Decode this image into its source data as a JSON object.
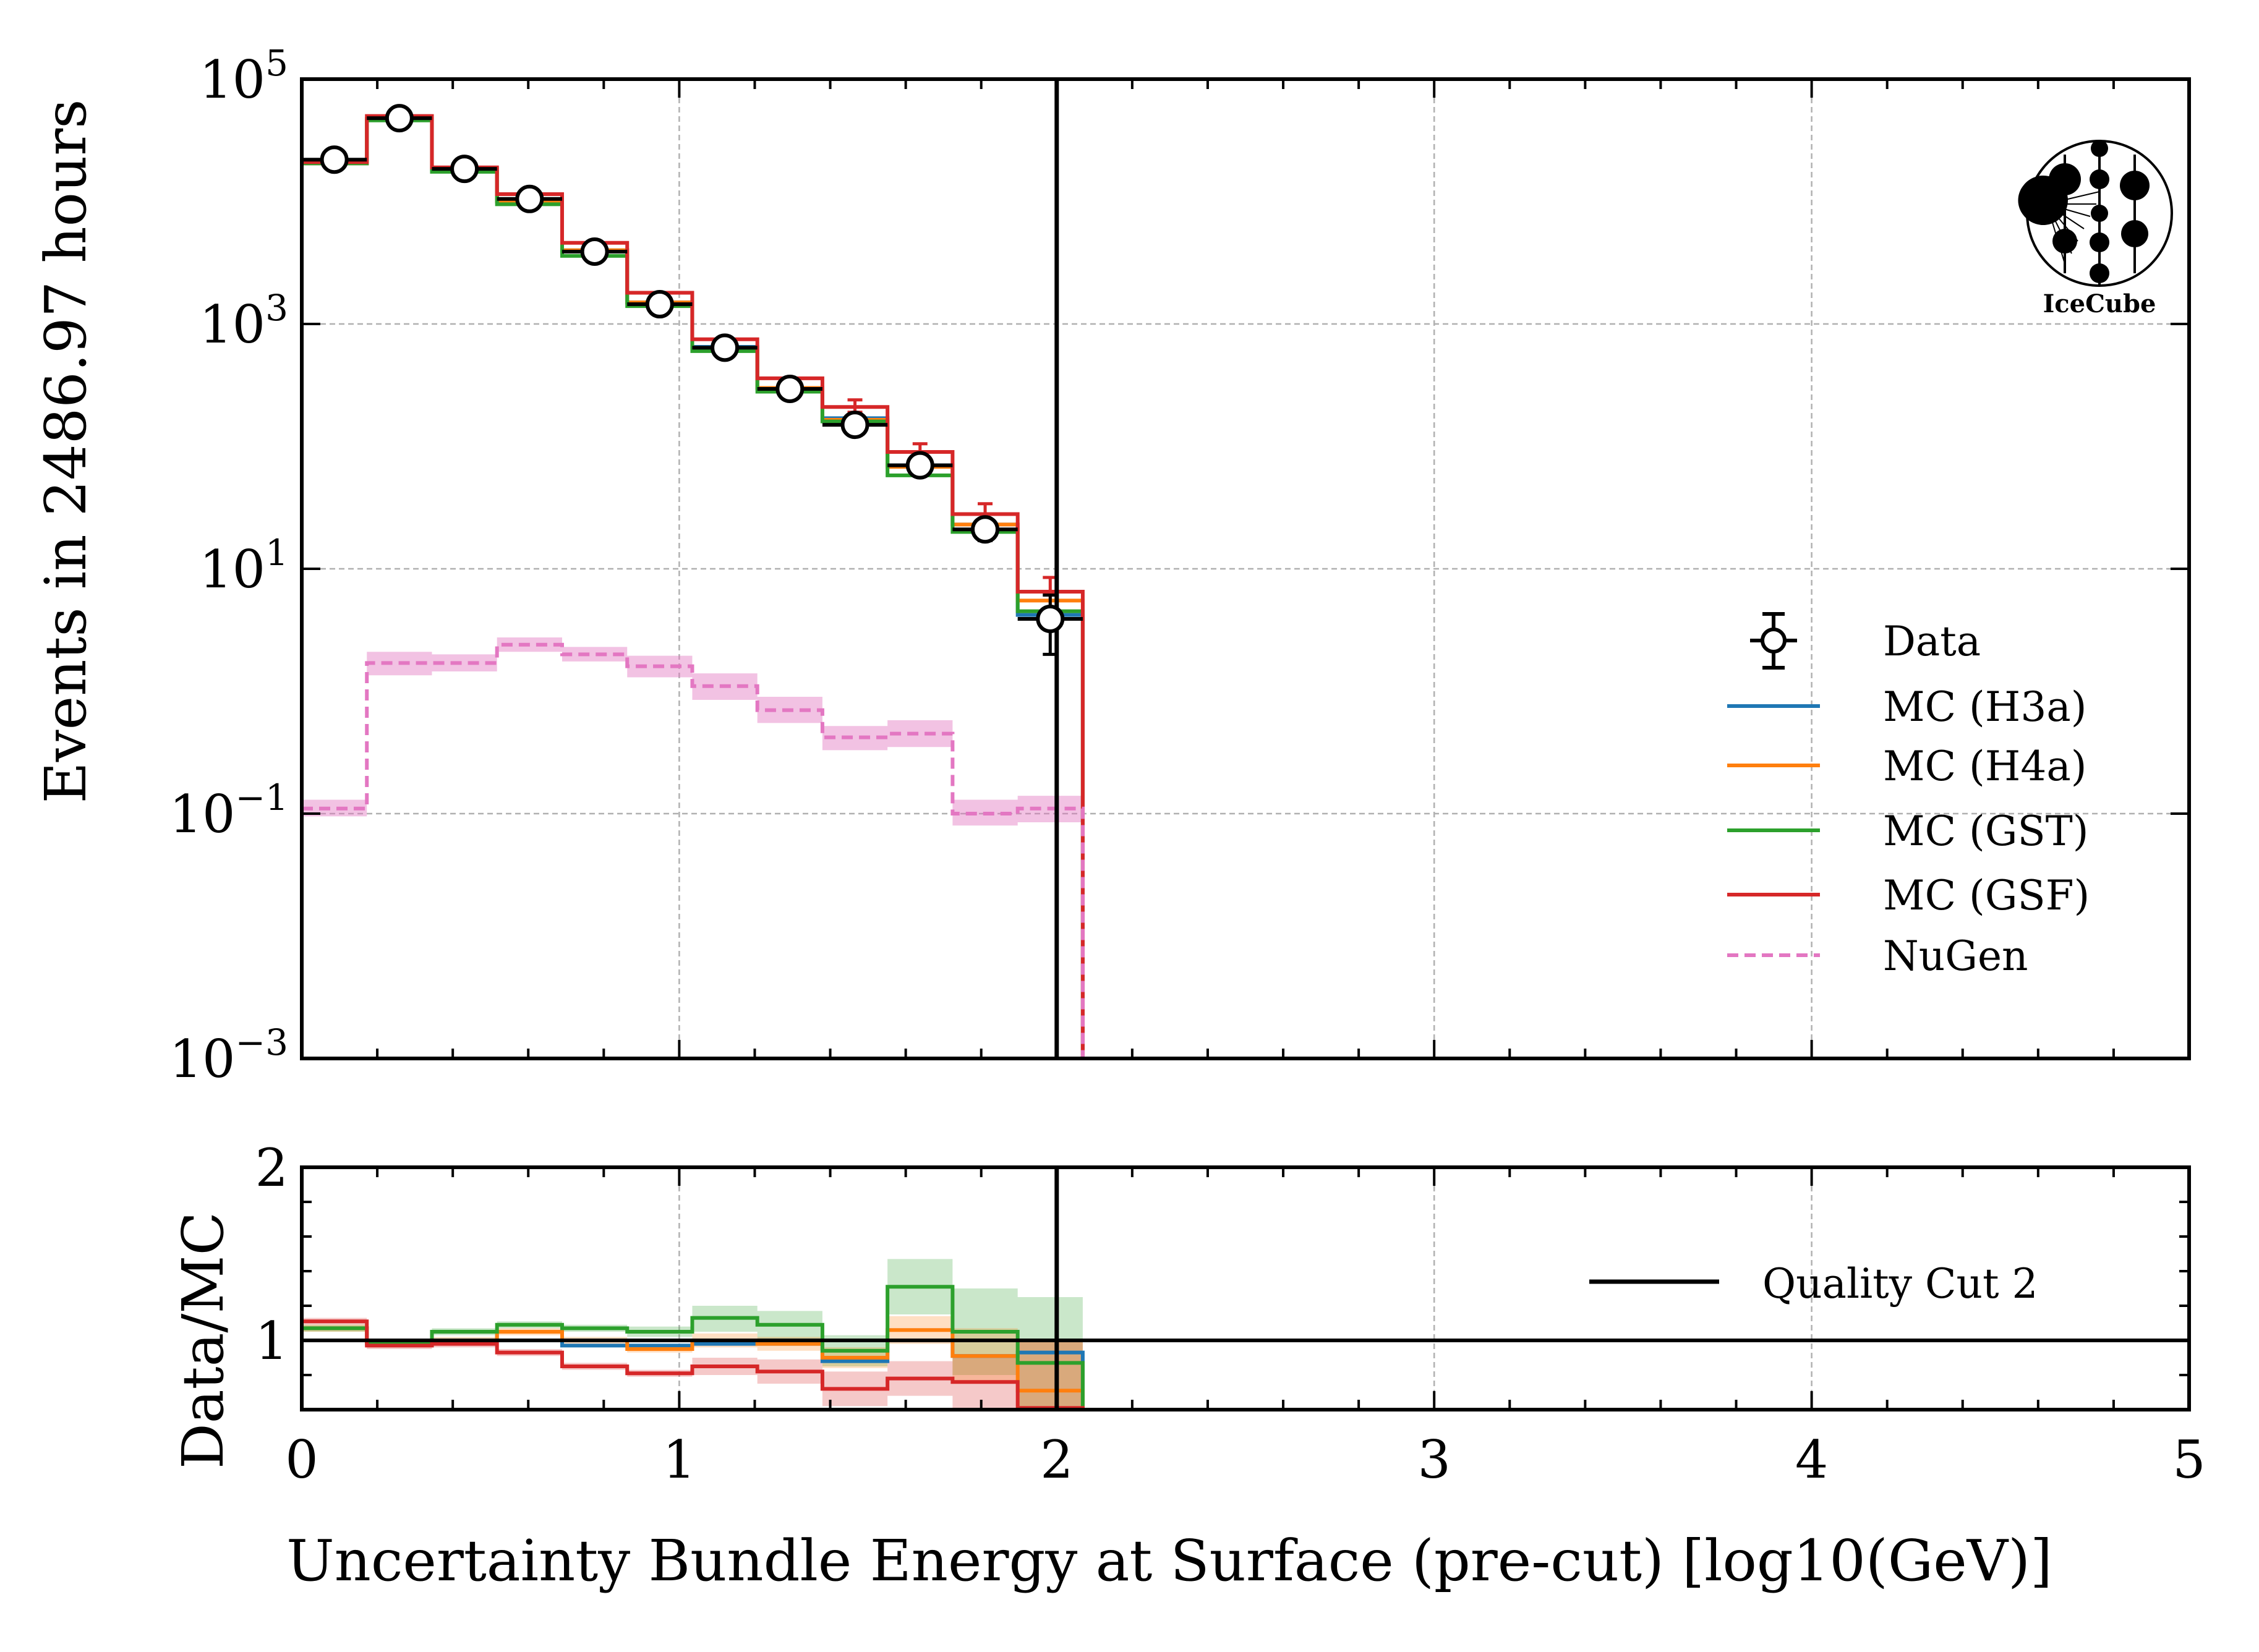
{
  "chart_data": [
    {
      "type": "line",
      "ylabel": "Events in 2486.97 hours",
      "yscale": "log",
      "ylim": [
        0.001,
        100000
      ],
      "xlim": [
        0,
        5
      ],
      "yticks": [
        {
          "value": 100000,
          "mant": "10",
          "exp": "5"
        },
        {
          "value": 1000,
          "mant": "10",
          "exp": "3"
        },
        {
          "value": 10,
          "mant": "10",
          "exp": "1"
        },
        {
          "value": 0.1,
          "mant": "10",
          "exp": "−1"
        },
        {
          "value": 0.001,
          "mant": "10",
          "exp": "−3"
        }
      ],
      "grid": true,
      "legend_position": "right",
      "bin_edges": [
        0,
        0.1724,
        0.3448,
        0.5172,
        0.6897,
        0.8621,
        1.0345,
        1.2069,
        1.3793,
        1.5517,
        1.7241,
        1.8966,
        2.069
      ],
      "data": {
        "name": "Data",
        "x": [
          0.0862,
          0.2586,
          0.431,
          0.6034,
          0.7759,
          0.9483,
          1.1207,
          1.2931,
          1.4655,
          1.6379,
          1.8103,
          1.9828
        ],
        "y": [
          22000,
          48000,
          18500,
          10500,
          3900,
          1450,
          640,
          295,
          150,
          70,
          21,
          3.9
        ],
        "yerr_low": [
          0,
          0,
          0,
          0,
          0,
          0,
          0,
          0,
          0,
          0,
          4,
          1.9
        ],
        "yerr_high": [
          0,
          0,
          0,
          0,
          0,
          0,
          0,
          0,
          0,
          0,
          4,
          2.2
        ]
      },
      "series": [
        {
          "name": "MC (H3a)",
          "color": "#1f77b4",
          "values": [
            20500,
            47500,
            18500,
            10000,
            4000,
            1500,
            650,
            300,
            170,
            70,
            23,
            4.2
          ]
        },
        {
          "name": "MC (H4a)",
          "color": "#ff7f0e",
          "values": [
            20500,
            47500,
            18500,
            10000,
            4000,
            1500,
            640,
            300,
            165,
            68,
            23,
            5.5
          ]
        },
        {
          "name": "MC (GST)",
          "color": "#2ca02c",
          "values": [
            20500,
            46000,
            17500,
            9500,
            3600,
            1400,
            600,
            280,
            160,
            58,
            20,
            4.5
          ]
        },
        {
          "name": "MC (GSF)",
          "color": "#d62728",
          "values": [
            21000,
            50000,
            19000,
            11500,
            4600,
            1800,
            750,
            360,
            210,
            90,
            28,
            6.5
          ]
        },
        {
          "name": "NuGen",
          "color": "#e377c2",
          "dashed": true,
          "values": [
            0.11,
            1.7,
            1.7,
            2.4,
            2.0,
            1.6,
            1.1,
            0.7,
            0.42,
            0.45,
            0.1,
            0.11
          ]
        }
      ],
      "errorbar_series": {
        "name": "MC (GSF)",
        "color": "#d62728",
        "low": [
          0,
          0,
          0,
          0,
          0,
          0,
          0,
          0,
          190,
          75,
          22,
          4.5
        ],
        "high": [
          0,
          0,
          0,
          0,
          0,
          0,
          0,
          0,
          240,
          105,
          34,
          8.5
        ]
      },
      "nugen_band": {
        "low": [
          0.095,
          1.35,
          1.45,
          2.1,
          1.75,
          1.3,
          0.85,
          0.55,
          0.33,
          0.35,
          0.08,
          0.085
        ],
        "high": [
          0.13,
          2.1,
          2.0,
          2.75,
          2.3,
          1.95,
          1.4,
          0.9,
          0.52,
          0.58,
          0.13,
          0.14
        ]
      },
      "vline": {
        "x": 2.0,
        "label": "Quality Cut 2"
      },
      "logo_text": "IceCube"
    },
    {
      "type": "line",
      "xlabel": "Uncertainty Bundle Energy at Surface (pre-cut) [log10(GeV)]",
      "ylabel": "Data/MC",
      "xlim": [
        0,
        5
      ],
      "ylim": [
        0.6,
        2.0
      ],
      "xticks": [
        0,
        1,
        2,
        3,
        4,
        5
      ],
      "yticks": [
        1,
        2
      ],
      "reference_line": 1.0,
      "series": [
        {
          "name": "MC (H3a)",
          "color": "#1f77b4",
          "values": [
            1.07,
            0.98,
            1.0,
            1.05,
            0.97,
            0.97,
            0.98,
            0.98,
            0.88,
            1.0,
            0.91,
            0.93
          ]
        },
        {
          "name": "MC (H4a)",
          "color": "#ff7f0e",
          "values": [
            1.07,
            0.98,
            1.0,
            1.05,
            1.0,
            0.95,
            1.0,
            0.98,
            0.9,
            1.06,
            0.91,
            0.71
          ]
        },
        {
          "name": "MC (GST)",
          "color": "#2ca02c",
          "values": [
            1.07,
            0.99,
            1.05,
            1.09,
            1.07,
            1.05,
            1.13,
            1.09,
            0.94,
            1.31,
            1.05,
            0.87
          ]
        },
        {
          "name": "MC (GSF)",
          "color": "#d62728",
          "values": [
            1.11,
            0.97,
            0.98,
            0.93,
            0.85,
            0.81,
            0.85,
            0.82,
            0.72,
            0.78,
            0.76,
            0.61
          ]
        }
      ],
      "bands": [
        {
          "color": "#2ca02c",
          "low": [
            1.05,
            0.97,
            1.03,
            1.07,
            1.05,
            1.02,
            1.05,
            1.01,
            0.85,
            1.15,
            0.8,
            0.6
          ],
          "high": [
            1.09,
            1.01,
            1.07,
            1.11,
            1.09,
            1.08,
            1.2,
            1.17,
            1.03,
            1.47,
            1.3,
            1.25
          ]
        },
        {
          "color": "#d62728",
          "low": [
            1.09,
            0.95,
            0.96,
            0.91,
            0.83,
            0.79,
            0.8,
            0.75,
            0.62,
            0.68,
            0.6,
            0.6
          ],
          "high": [
            1.13,
            0.99,
            1.0,
            0.95,
            0.87,
            0.83,
            0.9,
            0.89,
            0.82,
            0.88,
            0.92,
            1.0
          ]
        },
        {
          "color": "#ff7f0e",
          "low": [
            1.05,
            0.96,
            0.98,
            1.03,
            0.98,
            0.93,
            0.96,
            0.94,
            0.84,
            0.98,
            0.75,
            0.6
          ],
          "high": [
            1.09,
            1.0,
            1.02,
            1.07,
            1.02,
            0.97,
            1.04,
            1.02,
            0.96,
            1.14,
            1.07,
            1.0
          ]
        }
      ],
      "vline": {
        "x": 2.0,
        "label": "Quality Cut 2"
      }
    }
  ]
}
